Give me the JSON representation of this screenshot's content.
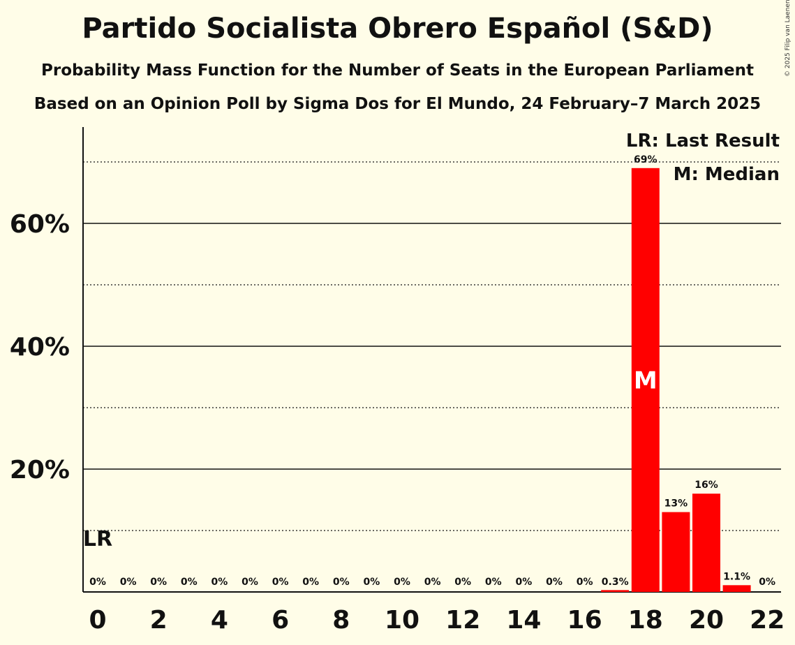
{
  "title": "Partido Socialista Obrero Español (S&D)",
  "subtitle": "Probability Mass Function for the Number of Seats in the European Parliament",
  "subtitle2": "Based on an Opinion Poll by Sigma Dos for El Mundo, 24 February–7 March 2025",
  "copyright": "© 2025 Filip van Laenen",
  "colors": {
    "bar": "#ff0000",
    "background": "#fffde8",
    "text": "#111111"
  },
  "chart_data": {
    "type": "bar",
    "x": [
      0,
      1,
      2,
      3,
      4,
      5,
      6,
      7,
      8,
      9,
      10,
      11,
      12,
      13,
      14,
      15,
      16,
      17,
      18,
      19,
      20,
      21,
      22
    ],
    "values": [
      0,
      0,
      0,
      0,
      0,
      0,
      0,
      0,
      0,
      0,
      0,
      0,
      0,
      0,
      0,
      0,
      0,
      0.3,
      69,
      13,
      16,
      1.1,
      0
    ],
    "value_labels": [
      "0%",
      "0%",
      "0%",
      "0%",
      "0%",
      "0%",
      "0%",
      "0%",
      "0%",
      "0%",
      "0%",
      "0%",
      "0%",
      "0%",
      "0%",
      "0%",
      "0%",
      "0.3%",
      "69%",
      "13%",
      "16%",
      "1.1%",
      "0%"
    ],
    "x_tick_labels": [
      "0",
      "2",
      "4",
      "6",
      "8",
      "10",
      "12",
      "14",
      "16",
      "18",
      "20",
      "22"
    ],
    "x_ticks": [
      0,
      2,
      4,
      6,
      8,
      10,
      12,
      14,
      16,
      18,
      20,
      22
    ],
    "y_tick_labels": [
      "20%",
      "40%",
      "60%"
    ],
    "y_ticks": [
      20,
      40,
      60
    ],
    "y_minor_gridlines": [
      10,
      30,
      50,
      70
    ],
    "ylim": [
      0,
      75
    ],
    "last_result_seat": 0,
    "last_result_label": "LR",
    "median_seat": 18,
    "median_label": "M",
    "legend": [
      "LR: Last Result",
      "M: Median"
    ],
    "legend_position": "top-right"
  }
}
